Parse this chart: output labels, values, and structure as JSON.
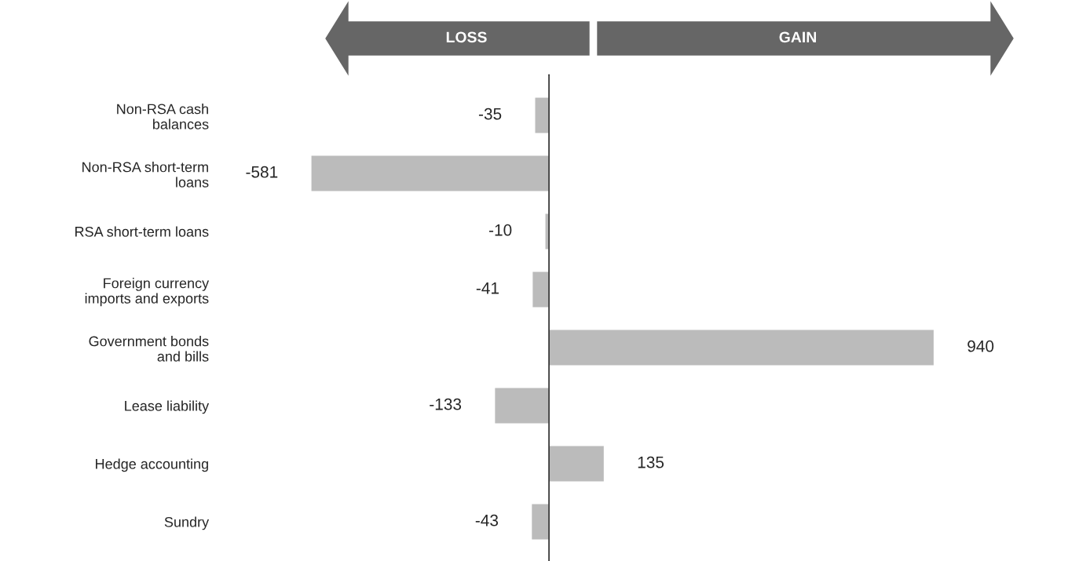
{
  "chart_data": {
    "type": "bar",
    "orientation": "horizontal",
    "categories": [
      "Non-RSA cash\nbalances",
      "Non-RSA short-term\nloans",
      "RSA short-term loans",
      "Foreign currency\nimports and exports",
      "Government bonds\nand bills",
      "Lease liability",
      "Hedge accounting",
      "Sundry"
    ],
    "values": [
      -35,
      -581,
      -10,
      -41,
      940,
      -133,
      135,
      -43
    ],
    "color": "#bbbbbb",
    "data_labels": true,
    "annotations": [
      "LOSS",
      "GAIN"
    ]
  }
}
